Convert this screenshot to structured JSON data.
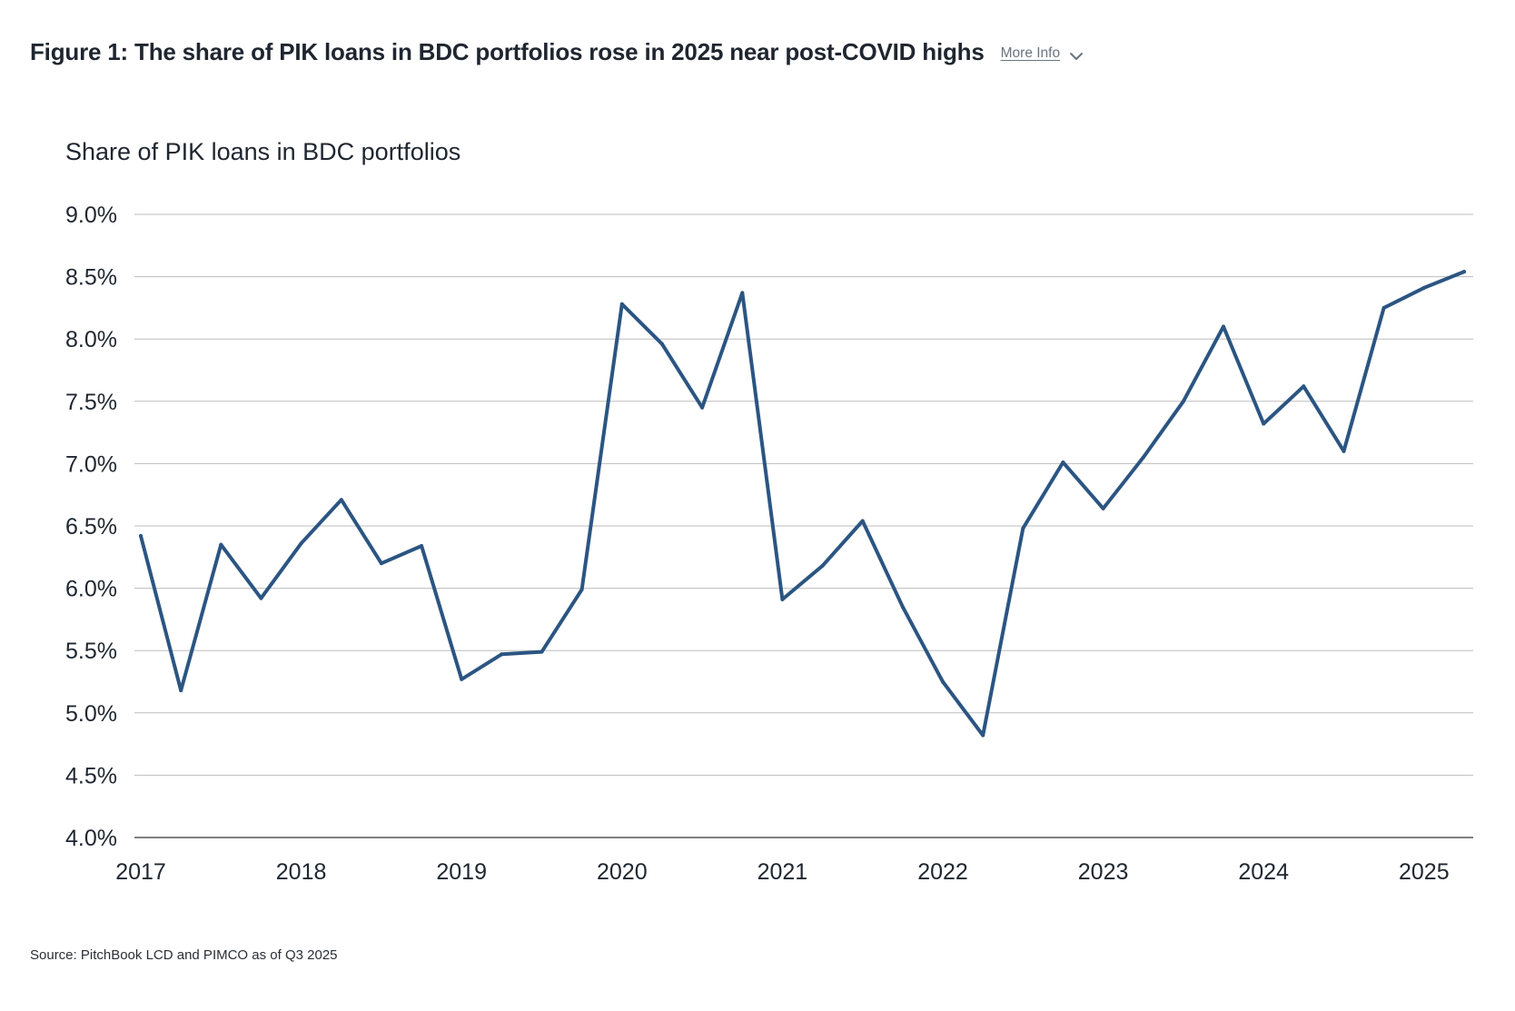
{
  "header": {
    "title": "Figure 1: The share of PIK loans in BDC portfolios rose in 2025 near post-COVID highs",
    "more_info_label": "More Info"
  },
  "source": "Source: PitchBook LCD and PIMCO as of Q3 2025",
  "colors": {
    "line": "#2b5582",
    "grid": "#bdbdbd",
    "axis": "#555555",
    "text": "#1f2630"
  },
  "chart_data": {
    "type": "line",
    "title": "Share of PIK loans in BDC portfolios",
    "xlabel": "",
    "ylabel": "",
    "ylim": [
      4.0,
      9.0
    ],
    "yticks": [
      "4.0%",
      "4.5%",
      "5.0%",
      "5.5%",
      "6.0%",
      "6.5%",
      "7.0%",
      "7.5%",
      "8.0%",
      "8.5%",
      "9.0%"
    ],
    "xticks": [
      "2017",
      "2018",
      "2019",
      "2020",
      "2021",
      "2022",
      "2023",
      "2024",
      "2025"
    ],
    "grid": true,
    "series": [
      {
        "x": [
          "Q1 2017",
          "Q2 2017",
          "Q3 2017",
          "Q4 2017",
          "Q1 2018",
          "Q2 2018",
          "Q3 2018",
          "Q4 2018",
          "Q1 2019",
          "Q2 2019",
          "Q3 2019",
          "Q4 2019",
          "Q1 2020",
          "Q2 2020",
          "Q3 2020",
          "Q4 2020",
          "Q1 2021",
          "Q2 2021",
          "Q3 2021",
          "Q4 2021",
          "Q1 2022",
          "Q2 2022",
          "Q3 2022",
          "Q4 2022",
          "Q1 2023",
          "Q2 2023",
          "Q3 2023",
          "Q4 2023",
          "Q1 2024",
          "Q2 2024",
          "Q3 2024",
          "Q4 2024",
          "Q1 2025",
          "Q2 2025"
        ],
        "values": [
          6.42,
          5.18,
          6.35,
          5.92,
          6.36,
          6.71,
          6.2,
          6.34,
          5.27,
          5.47,
          5.49,
          5.99,
          8.28,
          7.96,
          7.45,
          8.37,
          5.91,
          6.18,
          6.54,
          5.85,
          5.25,
          4.82,
          6.48,
          7.01,
          6.64,
          7.05,
          7.5,
          8.1,
          7.32,
          7.62,
          7.1,
          8.25,
          8.41,
          8.54
        ]
      }
    ]
  }
}
